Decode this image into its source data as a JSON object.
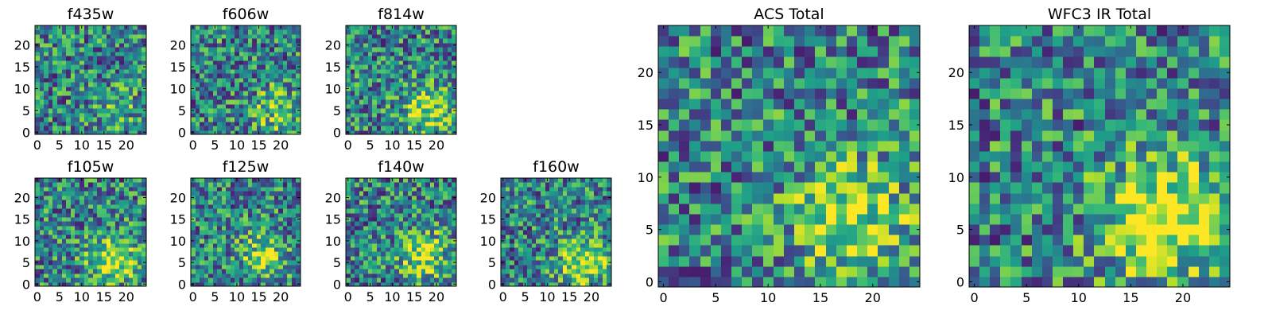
{
  "chart_data": [
    {
      "type": "heatmap",
      "title": "f435w",
      "xlabel": "",
      "ylabel": "",
      "grid_size": 25,
      "xlim": [
        -0.5,
        24.5
      ],
      "ylim": [
        -0.5,
        24.5
      ],
      "xticks": [
        0,
        5,
        10,
        15,
        20
      ],
      "yticks": [
        0,
        5,
        10,
        15,
        20
      ],
      "colormap": "viridis",
      "blob_center": [
        18,
        5
      ],
      "blob_strength": 0.18,
      "seed": 11
    },
    {
      "type": "heatmap",
      "title": "f606w",
      "xlabel": "",
      "ylabel": "",
      "grid_size": 25,
      "xlim": [
        -0.5,
        24.5
      ],
      "ylim": [
        -0.5,
        24.5
      ],
      "xticks": [
        0,
        5,
        10,
        15,
        20
      ],
      "yticks": [
        0,
        5,
        10,
        15,
        20
      ],
      "colormap": "viridis",
      "blob_center": [
        19,
        5
      ],
      "blob_strength": 0.3,
      "seed": 23
    },
    {
      "type": "heatmap",
      "title": "f814w",
      "xlabel": "",
      "ylabel": "",
      "grid_size": 25,
      "xlim": [
        -0.5,
        24.5
      ],
      "ylim": [
        -0.5,
        24.5
      ],
      "xticks": [
        0,
        5,
        10,
        15,
        20
      ],
      "yticks": [
        0,
        5,
        10,
        15,
        20
      ],
      "colormap": "viridis",
      "blob_center": [
        18,
        5
      ],
      "blob_strength": 0.45,
      "seed": 37
    },
    {
      "type": "heatmap",
      "title": "f105w",
      "xlabel": "",
      "ylabel": "",
      "grid_size": 25,
      "xlim": [
        -0.5,
        24.5
      ],
      "ylim": [
        -0.5,
        24.5
      ],
      "xticks": [
        0,
        5,
        10,
        15,
        20
      ],
      "yticks": [
        0,
        5,
        10,
        15,
        20
      ],
      "colormap": "viridis",
      "blob_center": [
        17,
        6
      ],
      "blob_strength": 0.5,
      "seed": 41
    },
    {
      "type": "heatmap",
      "title": "f125w",
      "xlabel": "",
      "ylabel": "",
      "grid_size": 25,
      "xlim": [
        -0.5,
        24.5
      ],
      "ylim": [
        -0.5,
        24.5
      ],
      "xticks": [
        0,
        5,
        10,
        15,
        20
      ],
      "yticks": [
        0,
        5,
        10,
        15,
        20
      ],
      "colormap": "viridis",
      "blob_center": [
        16,
        7
      ],
      "blob_strength": 0.35,
      "seed": 53
    },
    {
      "type": "heatmap",
      "title": "f140w",
      "xlabel": "",
      "ylabel": "",
      "grid_size": 25,
      "xlim": [
        -0.5,
        24.5
      ],
      "ylim": [
        -0.5,
        24.5
      ],
      "xticks": [
        0,
        5,
        10,
        15,
        20
      ],
      "yticks": [
        0,
        5,
        10,
        15,
        20
      ],
      "colormap": "viridis",
      "blob_center": [
        17,
        7
      ],
      "blob_strength": 0.45,
      "seed": 67
    },
    {
      "type": "heatmap",
      "title": "f160w",
      "xlabel": "",
      "ylabel": "",
      "grid_size": 25,
      "xlim": [
        -0.5,
        24.5
      ],
      "ylim": [
        -0.5,
        24.5
      ],
      "xticks": [
        0,
        5,
        10,
        15,
        20
      ],
      "yticks": [
        0,
        5,
        10,
        15,
        20
      ],
      "colormap": "viridis",
      "blob_center": [
        18,
        5
      ],
      "blob_strength": 0.5,
      "seed": 79
    },
    {
      "type": "heatmap",
      "title": "ACS Total",
      "xlabel": "",
      "ylabel": "",
      "grid_size": 25,
      "xlim": [
        -0.5,
        24.5
      ],
      "ylim": [
        -0.5,
        24.5
      ],
      "xticks": [
        0,
        5,
        10,
        15,
        20
      ],
      "yticks": [
        0,
        5,
        10,
        15,
        20
      ],
      "colormap": "viridis",
      "blob_center": [
        18,
        6
      ],
      "blob_strength": 0.45,
      "seed": 97
    },
    {
      "type": "heatmap",
      "title": "WFC3 IR Total",
      "xlabel": "",
      "ylabel": "",
      "grid_size": 25,
      "xlim": [
        -0.5,
        24.5
      ],
      "ylim": [
        -0.5,
        24.5
      ],
      "xticks": [
        0,
        5,
        10,
        15,
        20
      ],
      "yticks": [
        0,
        5,
        10,
        15,
        20
      ],
      "colormap": "viridis",
      "blob_center": [
        18,
        6
      ],
      "blob_strength": 0.65,
      "seed": 113
    }
  ]
}
